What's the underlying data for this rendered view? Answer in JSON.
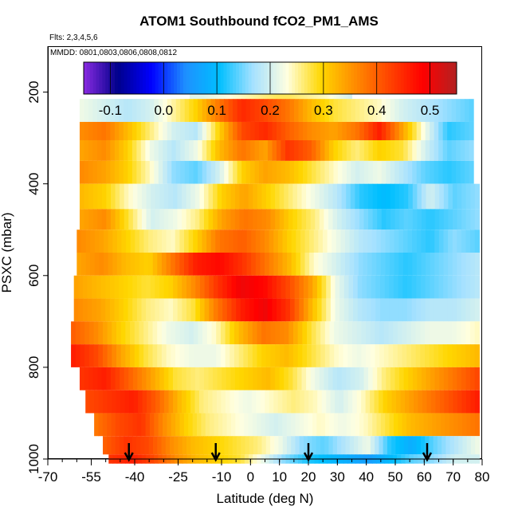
{
  "chart_data": {
    "type": "heatmap",
    "title": "ATOM1 Southbound fCO2_PM1_AMS",
    "flights_label": "Flts: 2,3,4,5,6",
    "dates_label": "MMDD: 0801,0803,0806,0808,0812",
    "xlabel": "Latitude (deg N)",
    "ylabel": "PSXC (mbar)",
    "xlim": [
      -70,
      80
    ],
    "ylim": [
      1000,
      100
    ],
    "x_ticks": [
      -70,
      -55,
      -40,
      -25,
      -10,
      0,
      10,
      20,
      30,
      40,
      50,
      60,
      70,
      80
    ],
    "x_minor_step": 5,
    "y_ticks": [
      200,
      400,
      600,
      800,
      1000
    ],
    "colorbar": {
      "range": [
        -0.15,
        0.55
      ],
      "ticks": [
        -0.1,
        0.0,
        0.1,
        0.2,
        0.3,
        0.4,
        0.5
      ],
      "tick_labels": [
        "-0.1",
        "0.0",
        "0.1",
        "0.2",
        "0.3",
        "0.4",
        "0.5"
      ],
      "colors": [
        "#8a2be2",
        "#00008b",
        "#0000ff",
        "#1e90ff",
        "#00bfff",
        "#a6e1ff",
        "#ffffe0",
        "#ffd700",
        "#ff8c00",
        "#ff4500",
        "#ff0000",
        "#b22222"
      ]
    },
    "profile_arrows_lat": [
      -42,
      -12,
      20,
      61
    ],
    "bands": [
      {
        "p": [
          170,
          215
        ],
        "lat": [
          -21,
          35
        ],
        "values": [
          0.21,
          0.21,
          0.22,
          0.23,
          0.24,
          0.25,
          0.26,
          0.27,
          0.27,
          0.26,
          0.25,
          0.24,
          0.22,
          0.2
        ]
      },
      {
        "p": [
          215,
          265
        ],
        "lat": [
          -59,
          77
        ],
        "values": [
          0.22,
          0.2,
          0.18,
          0.2,
          0.25,
          0.3,
          0.38,
          0.45,
          0.42,
          0.38,
          0.32,
          0.28,
          0.26,
          0.24,
          0.2,
          0.18,
          0.16,
          0.14
        ]
      },
      {
        "p": [
          265,
          305
        ],
        "lat": [
          -59,
          77
        ],
        "values": [
          0.36,
          0.38,
          0.32,
          0.26,
          0.2,
          0.18,
          0.3,
          0.42,
          0.45,
          0.4,
          0.36,
          0.34,
          0.38,
          0.46,
          0.34,
          0.22,
          0.12,
          0.14
        ]
      },
      {
        "p": [
          305,
          350
        ],
        "lat": [
          -59,
          77
        ],
        "values": [
          0.34,
          0.36,
          0.3,
          0.22,
          0.18,
          0.22,
          0.32,
          0.38,
          0.34,
          0.44,
          0.4,
          0.3,
          0.26,
          0.3,
          0.28,
          0.2,
          0.14,
          0.16
        ]
      },
      {
        "p": [
          350,
          400
        ],
        "lat": [
          -59,
          77
        ],
        "values": [
          0.36,
          0.34,
          0.3,
          0.24,
          0.16,
          0.14,
          0.2,
          0.3,
          0.34,
          0.32,
          0.28,
          0.24,
          0.2,
          0.22,
          0.18,
          0.14,
          0.12,
          0.14
        ]
      },
      {
        "p": [
          400,
          455
        ],
        "lat": [
          -59,
          79
        ],
        "values": [
          0.32,
          0.3,
          0.24,
          0.2,
          0.18,
          0.22,
          0.3,
          0.34,
          0.3,
          0.26,
          0.22,
          0.18,
          0.12,
          0.1,
          0.12,
          0.2,
          0.14,
          0.16
        ]
      },
      {
        "p": [
          455,
          500
        ],
        "lat": [
          -59,
          79
        ],
        "values": [
          0.34,
          0.36,
          0.28,
          0.2,
          0.22,
          0.26,
          0.34,
          0.38,
          0.36,
          0.3,
          0.26,
          0.2,
          0.16,
          0.12,
          0.14,
          0.12,
          0.14,
          0.16
        ]
      },
      {
        "p": [
          500,
          550
        ],
        "lat": [
          -60,
          79
        ],
        "values": [
          0.36,
          0.34,
          0.3,
          0.26,
          0.24,
          0.3,
          0.38,
          0.4,
          0.36,
          0.3,
          0.26,
          0.22,
          0.18,
          0.16,
          0.14,
          0.12,
          0.16,
          0.14
        ]
      },
      {
        "p": [
          550,
          600
        ],
        "lat": [
          -60,
          79
        ],
        "values": [
          0.34,
          0.36,
          0.32,
          0.3,
          0.38,
          0.46,
          0.48,
          0.44,
          0.38,
          0.32,
          0.24,
          0.2,
          0.16,
          0.14,
          0.12,
          0.14,
          0.16,
          0.18
        ]
      },
      {
        "p": [
          600,
          650
        ],
        "lat": [
          -61,
          79
        ],
        "values": [
          0.34,
          0.32,
          0.3,
          0.28,
          0.3,
          0.36,
          0.44,
          0.5,
          0.48,
          0.42,
          0.34,
          0.22,
          0.16,
          0.14,
          0.12,
          0.14,
          0.16,
          0.18
        ]
      },
      {
        "p": [
          650,
          700
        ],
        "lat": [
          -61,
          79
        ],
        "values": [
          0.36,
          0.34,
          0.3,
          0.26,
          0.24,
          0.28,
          0.38,
          0.46,
          0.5,
          0.44,
          0.32,
          0.22,
          0.18,
          0.16,
          0.16,
          0.18,
          0.18,
          0.2
        ]
      },
      {
        "p": [
          700,
          750
        ],
        "lat": [
          -62,
          79
        ],
        "values": [
          0.4,
          0.36,
          0.3,
          0.26,
          0.22,
          0.2,
          0.24,
          0.32,
          0.38,
          0.36,
          0.28,
          0.22,
          0.2,
          0.18,
          0.2,
          0.22,
          0.22,
          0.24
        ]
      },
      {
        "p": [
          750,
          800
        ],
        "lat": [
          -62,
          79
        ],
        "values": [
          0.46,
          0.42,
          0.34,
          0.28,
          0.24,
          0.22,
          0.22,
          0.26,
          0.3,
          0.32,
          0.28,
          0.24,
          0.22,
          0.24,
          0.26,
          0.28,
          0.3,
          0.32
        ]
      },
      {
        "p": [
          800,
          850
        ],
        "lat": [
          -59,
          79
        ],
        "values": [
          0.44,
          0.46,
          0.4,
          0.34,
          0.28,
          0.26,
          0.28,
          0.3,
          0.32,
          0.28,
          0.22,
          0.18,
          0.2,
          0.26,
          0.3,
          0.34,
          0.38,
          0.42
        ]
      },
      {
        "p": [
          850,
          900
        ],
        "lat": [
          -57,
          79
        ],
        "values": [
          0.42,
          0.44,
          0.46,
          0.4,
          0.32,
          0.26,
          0.24,
          0.22,
          0.24,
          0.26,
          0.24,
          0.2,
          0.24,
          0.3,
          0.34,
          0.38,
          0.42,
          0.46
        ]
      },
      {
        "p": [
          900,
          950
        ],
        "lat": [
          -54,
          79
        ],
        "values": [
          0.38,
          0.42,
          0.44,
          0.36,
          0.3,
          0.26,
          0.24,
          0.22,
          0.2,
          0.22,
          0.24,
          0.22,
          0.24,
          0.28,
          0.32,
          0.34,
          0.36,
          0.38
        ]
      },
      {
        "p": [
          950,
          990
        ],
        "lat": [
          -51,
          79
        ],
        "values": [
          0.4,
          0.44,
          0.42,
          0.36,
          0.32,
          0.3,
          0.28,
          0.26,
          0.22,
          0.16,
          0.14,
          0.18,
          0.22,
          0.12,
          0.08,
          0.14,
          0.18,
          0.22
        ]
      },
      {
        "p": [
          990,
          1010
        ],
        "lat": [
          -49,
          79
        ],
        "values": [
          0.44,
          0.46,
          0.42,
          0.36,
          0.32,
          0.3,
          0.28,
          0.22,
          0.16,
          0.12,
          0.1,
          0.08,
          0.06,
          0.1,
          0.14,
          0.16,
          0.2,
          0.2
        ]
      }
    ]
  }
}
